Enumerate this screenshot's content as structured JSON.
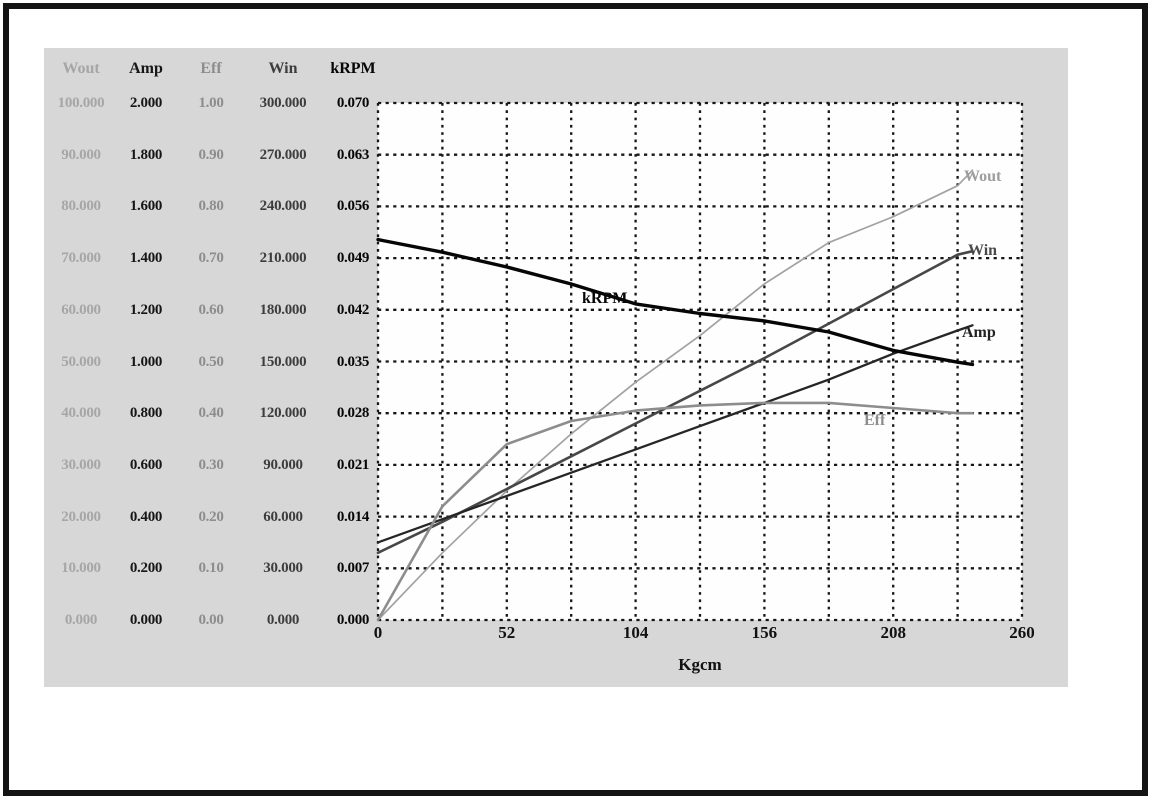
{
  "colors": {
    "panel_bg": "#d7d7d7",
    "plot_bg": "#fefefe",
    "grid": "#161616",
    "frame": "#141414"
  },
  "chart_data": {
    "type": "line",
    "title": "",
    "xlabel": "Kgcm",
    "ylabel": "",
    "x_range": [
      0,
      260
    ],
    "x_tick_labels": [
      "0",
      "52",
      "104",
      "156",
      "208",
      "260"
    ],
    "grid": "dotted",
    "legend_position": "on-curve-labels",
    "y_axes": [
      {
        "name": "Wout",
        "max": 100,
        "color": "#a6a6a6",
        "tick_labels": [
          "100.000",
          "90.000",
          "80.000",
          "70.000",
          "60.000",
          "50.000",
          "40.000",
          "30.000",
          "20.000",
          "10.000",
          "0.000"
        ]
      },
      {
        "name": "Amp",
        "max": 2,
        "color": "#161616",
        "tick_labels": [
          "2.000",
          "1.800",
          "1.600",
          "1.400",
          "1.200",
          "1.000",
          "0.800",
          "0.600",
          "0.400",
          "0.200",
          "0.000"
        ]
      },
      {
        "name": "Eff",
        "max": 1,
        "color": "#8d8d8d",
        "tick_labels": [
          "1.00",
          "0.90",
          "0.80",
          "0.70",
          "0.60",
          "0.50",
          "0.40",
          "0.30",
          "0.20",
          "0.10",
          "0.00"
        ]
      },
      {
        "name": "Win",
        "max": 300,
        "color": "#3d3d3d",
        "tick_labels": [
          "300.000",
          "270.000",
          "240.000",
          "210.000",
          "180.000",
          "150.000",
          "120.000",
          "90.000",
          "60.000",
          "30.000",
          "0.000"
        ]
      },
      {
        "name": "kRPM",
        "max": 0.07,
        "color": "#060606",
        "tick_labels": [
          "0.070",
          "0.063",
          "0.056",
          "0.049",
          "0.042",
          "0.035",
          "0.028",
          "0.021",
          "0.014",
          "0.007",
          "0.000"
        ]
      }
    ],
    "x": [
      0,
      26,
      52,
      78,
      104,
      130,
      156,
      182,
      208,
      234,
      240
    ],
    "series": [
      {
        "name": "Wout",
        "scale_max": 100,
        "color": "#a2a2a2",
        "width": 1.7,
        "values": [
          0,
          13,
          25,
          36,
          46,
          55,
          65,
          73,
          78,
          84,
          87
        ]
      },
      {
        "name": "Win",
        "scale_max": 300,
        "color": "#474747",
        "width": 2.6,
        "values": [
          39,
          57,
          76,
          95,
          114,
          133,
          152,
          172,
          192,
          212,
          214
        ]
      },
      {
        "name": "Amp",
        "scale_max": 2,
        "color": "#262626",
        "width": 2.3,
        "values": [
          0.3,
          0.39,
          0.48,
          0.57,
          0.66,
          0.75,
          0.84,
          0.93,
          1.03,
          1.12,
          1.14
        ]
      },
      {
        "name": "Eff",
        "scale_max": 1,
        "color": "#8d8d8d",
        "width": 2.6,
        "values": [
          0,
          0.22,
          0.34,
          0.385,
          0.405,
          0.415,
          0.42,
          0.42,
          0.41,
          0.4,
          0.4
        ]
      },
      {
        "name": "kRPM",
        "scale_max": 0.07,
        "color": "#060606",
        "width": 3.4,
        "values": [
          0.0515,
          0.0498,
          0.0478,
          0.0455,
          0.0428,
          0.0415,
          0.0405,
          0.039,
          0.0365,
          0.0349,
          0.0346
        ]
      }
    ],
    "curve_labels": [
      {
        "text": "Wout",
        "x": 586,
        "y": 78,
        "color": "#9d9d9d"
      },
      {
        "text": "Win",
        "x": 590,
        "y": 152,
        "color": "#4a4a4a"
      },
      {
        "text": "Amp",
        "x": 584,
        "y": 234,
        "color": "#222222"
      },
      {
        "text": "Eff",
        "x": 486,
        "y": 322,
        "color": "#8d8d8d"
      },
      {
        "text": "kRPM",
        "x": 204,
        "y": 200,
        "color": "#060606"
      }
    ]
  }
}
